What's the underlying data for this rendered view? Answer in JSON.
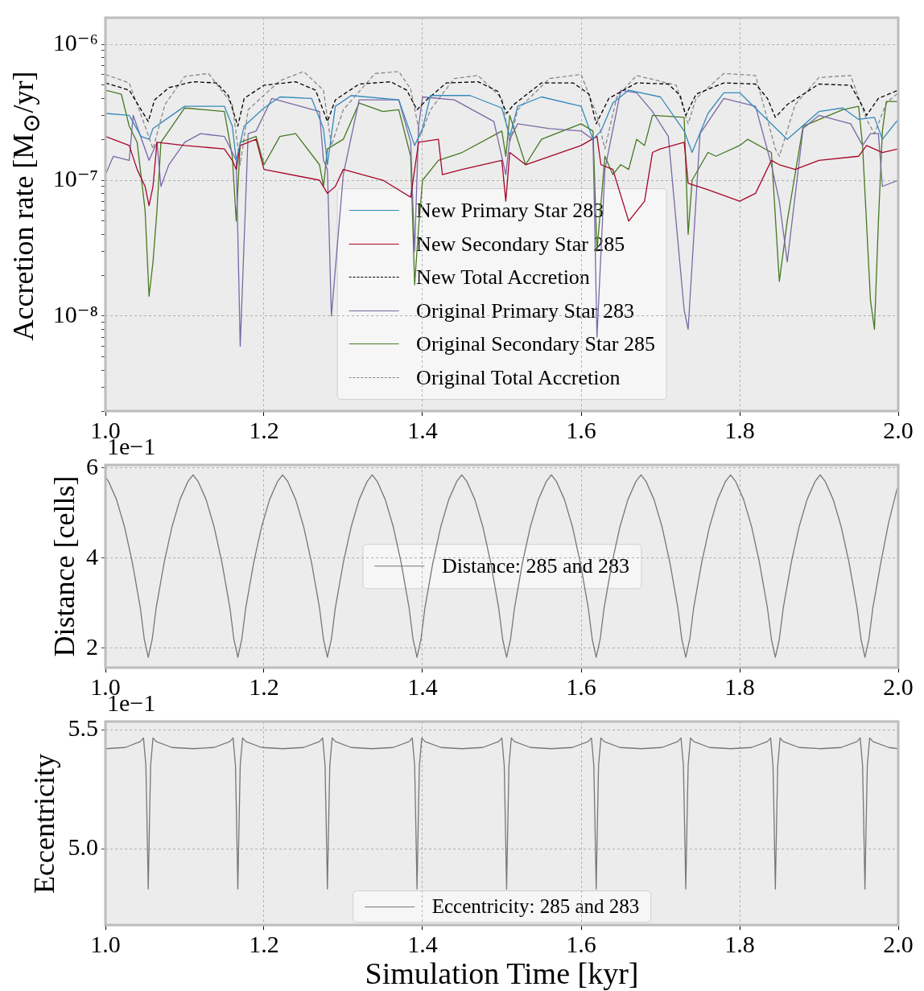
{
  "chart_data": [
    {
      "type": "line",
      "ylabel": "Accretion rate [M$_{⊙}$/yr]",
      "log": "y",
      "grid": true,
      "legend": "bottom",
      "xlim": [
        1.0,
        2.0
      ],
      "xticks": [
        {
          "value": 1.0,
          "label": "1.0"
        },
        {
          "value": 1.2,
          "label": "1.2"
        },
        {
          "value": 1.4,
          "label": "1.4"
        },
        {
          "value": 1.6,
          "label": "1.6"
        },
        {
          "value": 1.8,
          "label": "1.8"
        },
        {
          "value": 2.0,
          "label": "2.0"
        }
      ],
      "ylim": [
        2e-09,
        1.57e-06
      ],
      "yticks": [
        {
          "value": 2e-09,
          "label": null
        },
        {
          "value": 3e-09,
          "label": null
        },
        {
          "value": 4e-09,
          "label": null
        },
        {
          "value": 5e-09,
          "label": null
        },
        {
          "value": 6e-09,
          "label": null
        },
        {
          "value": 7e-09,
          "label": null
        },
        {
          "value": 8e-09,
          "label": null
        },
        {
          "value": 9e-09,
          "label": null
        },
        {
          "value": 1e-08,
          "label": "10⁻⁸"
        },
        {
          "value": 2e-08,
          "label": null
        },
        {
          "value": 3e-08,
          "label": null
        },
        {
          "value": 4e-08,
          "label": null
        },
        {
          "value": 5e-08,
          "label": null
        },
        {
          "value": 6e-08,
          "label": null
        },
        {
          "value": 7e-08,
          "label": null
        },
        {
          "value": 8e-08,
          "label": null
        },
        {
          "value": 9e-08,
          "label": null
        },
        {
          "value": 1e-07,
          "label": "10⁻⁷"
        },
        {
          "value": 2e-07,
          "label": null
        },
        {
          "value": 3e-07,
          "label": null
        },
        {
          "value": 4e-07,
          "label": null
        },
        {
          "value": 5e-07,
          "label": null
        },
        {
          "value": 6e-07,
          "label": null
        },
        {
          "value": 7e-07,
          "label": null
        },
        {
          "value": 8e-07,
          "label": null
        },
        {
          "value": 9e-07,
          "label": null
        },
        {
          "value": 1e-06,
          "label": "10⁻⁶"
        }
      ],
      "series": [
        {
          "name": "New Primary Star 283",
          "color": "#348abd",
          "line_style": "solid",
          "x": [
            1.0,
            1.03,
            1.045,
            1.055,
            1.06,
            1.08,
            1.1,
            1.15,
            1.16,
            1.165,
            1.175,
            1.2,
            1.22,
            1.26,
            1.275,
            1.28,
            1.29,
            1.31,
            1.37,
            1.39,
            1.4,
            1.41,
            1.46,
            1.5,
            1.51,
            1.52,
            1.55,
            1.6,
            1.615,
            1.625,
            1.64,
            1.66,
            1.7,
            1.73,
            1.74,
            1.76,
            1.78,
            1.8,
            1.84,
            1.86,
            1.9,
            1.93,
            1.95,
            1.97,
            1.98,
            2.0
          ],
          "values": [
            3.1e-07,
            3e-07,
            2.1e-07,
            2e-07,
            2.4e-07,
            2.9e-07,
            3.5e-07,
            3.5e-07,
            2.5e-07,
            1.4e-07,
            2.5e-07,
            3.4e-07,
            4.1e-07,
            4e-07,
            2.4e-07,
            1.3e-07,
            3.5e-07,
            4.2e-07,
            3.9e-07,
            1.8e-07,
            2.4e-07,
            4.2e-07,
            4.2e-07,
            3.4e-07,
            2.1e-07,
            3.5e-07,
            4.1e-07,
            3.5e-07,
            2e-07,
            2.3e-07,
            3.7e-07,
            4.6e-07,
            4.1e-07,
            2.3e-07,
            1.6e-07,
            3.1e-07,
            4.4e-07,
            4.4e-07,
            2.6e-07,
            2e-07,
            3.2e-07,
            3.4e-07,
            2.8e-07,
            2.9e-07,
            2e-07,
            2.8e-07
          ]
        },
        {
          "name": "New Secondary Star 285",
          "color": "#a60628",
          "line_style": "solid",
          "x": [
            1.0,
            1.03,
            1.04,
            1.05,
            1.055,
            1.06,
            1.065,
            1.1,
            1.15,
            1.16,
            1.165,
            1.17,
            1.19,
            1.2,
            1.27,
            1.28,
            1.29,
            1.3,
            1.35,
            1.385,
            1.395,
            1.42,
            1.425,
            1.45,
            1.5,
            1.505,
            1.51,
            1.53,
            1.6,
            1.62,
            1.625,
            1.64,
            1.66,
            1.68,
            1.69,
            1.7,
            1.73,
            1.735,
            1.76,
            1.8,
            1.82,
            1.84,
            1.85,
            1.87,
            1.9,
            1.95,
            1.96,
            1.98,
            2.0
          ],
          "values": [
            2.1e-07,
            1.8e-07,
            1.2e-07,
            9e-08,
            6.5e-08,
            9e-08,
            1.9e-07,
            1.8e-07,
            1.7e-07,
            1.4e-07,
            1.2e-07,
            1.8e-07,
            2e-07,
            1.2e-07,
            1e-07,
            8e-08,
            9e-08,
            1.2e-07,
            1e-07,
            7.5e-08,
            1.9e-07,
            2e-07,
            1.1e-07,
            1.2e-07,
            1.4e-07,
            7e-08,
            1.6e-07,
            1.3e-07,
            1.8e-07,
            2.1e-07,
            1.3e-07,
            1.2e-07,
            5e-08,
            7e-08,
            1.6e-07,
            1.7e-07,
            1.9e-07,
            9.5e-08,
            8.5e-08,
            7e-08,
            8e-08,
            1.4e-07,
            1.3e-07,
            1.2e-07,
            1.4e-07,
            1.5e-07,
            1.8e-07,
            1.6e-07,
            1.7e-07
          ]
        },
        {
          "name": "New Total Accretion",
          "color": "#000000",
          "line_style": "dashed",
          "x": [
            1.0,
            1.03,
            1.045,
            1.054,
            1.062,
            1.08,
            1.11,
            1.14,
            1.155,
            1.167,
            1.175,
            1.2,
            1.24,
            1.265,
            1.28,
            1.29,
            1.32,
            1.36,
            1.38,
            1.393,
            1.405,
            1.43,
            1.47,
            1.495,
            1.506,
            1.515,
            1.55,
            1.59,
            1.61,
            1.619,
            1.635,
            1.67,
            1.71,
            1.725,
            1.732,
            1.745,
            1.78,
            1.82,
            1.835,
            1.845,
            1.86,
            1.9,
            1.94,
            1.955,
            1.96,
            1.975,
            2.0
          ],
          "values": [
            5.2e-07,
            4.6e-07,
            3.3e-07,
            2.7e-07,
            3.9e-07,
            4.8e-07,
            5.3e-07,
            5.2e-07,
            4.2e-07,
            2.5e-07,
            4e-07,
            5e-07,
            5.3e-07,
            4.6e-07,
            2.7e-07,
            3.9e-07,
            5.1e-07,
            5.3e-07,
            4.6e-07,
            3.3e-07,
            3.9e-07,
            5.2e-07,
            5.3e-07,
            4.5e-07,
            3.1e-07,
            3.6e-07,
            5.2e-07,
            5.2e-07,
            4.3e-07,
            2.6e-07,
            4e-07,
            5.2e-07,
            5.1e-07,
            4.2e-07,
            3e-07,
            4.3e-07,
            5.2e-07,
            5.1e-07,
            4e-07,
            2.9e-07,
            3.6e-07,
            5.1e-07,
            5e-07,
            3.5e-07,
            3e-07,
            4e-07,
            4.6e-07
          ]
        },
        {
          "name": "Original Primary Star 283",
          "color": "#7a68a6",
          "line_style": "solid",
          "x": [
            1.0,
            1.01,
            1.03,
            1.035,
            1.055,
            1.065,
            1.07,
            1.08,
            1.1,
            1.12,
            1.15,
            1.165,
            1.17,
            1.18,
            1.19,
            1.21,
            1.27,
            1.275,
            1.28,
            1.285,
            1.3,
            1.32,
            1.37,
            1.385,
            1.39,
            1.395,
            1.4,
            1.44,
            1.49,
            1.505,
            1.51,
            1.52,
            1.56,
            1.6,
            1.615,
            1.62,
            1.63,
            1.65,
            1.67,
            1.69,
            1.71,
            1.73,
            1.735,
            1.75,
            1.78,
            1.82,
            1.84,
            1.85,
            1.86,
            1.88,
            1.9,
            1.94,
            1.955,
            1.965,
            1.975,
            1.98,
            2.0
          ],
          "values": [
            1.1e-07,
            1.5e-07,
            1.4e-07,
            3e-07,
            1.4e-07,
            1.9e-07,
            9e-08,
            1.3e-07,
            1.9e-07,
            2.2e-07,
            2.1e-07,
            1.4e-07,
            6e-09,
            2.2e-07,
            2.3e-07,
            4e-07,
            3.2e-07,
            1.4e-07,
            1.2e-07,
            1e-08,
            1.1e-07,
            3.9e-07,
            3.9e-07,
            1.9e-07,
            3e-08,
            2.5e-07,
            4.1e-07,
            3.9e-07,
            2.7e-07,
            1.1e-07,
            2e-07,
            2.6e-07,
            2.4e-07,
            2.3e-07,
            2e-07,
            7e-09,
            1.2e-07,
            4.6e-07,
            4.4e-07,
            3.2e-07,
            2.1e-07,
            1.1e-08,
            8e-09,
            2.2e-07,
            4e-07,
            3.5e-07,
            1.3e-07,
            7e-08,
            2.5e-08,
            2.4e-07,
            3e-07,
            2.6e-07,
            1.8e-07,
            2.2e-07,
            2.2e-07,
            9e-08,
            1e-07
          ]
        },
        {
          "name": "Original Secondary Star 285",
          "color": "#467821",
          "line_style": "solid",
          "x": [
            1.0,
            1.02,
            1.03,
            1.04,
            1.05,
            1.055,
            1.06,
            1.065,
            1.07,
            1.1,
            1.15,
            1.16,
            1.165,
            1.17,
            1.19,
            1.2,
            1.22,
            1.24,
            1.27,
            1.275,
            1.28,
            1.3,
            1.32,
            1.35,
            1.37,
            1.385,
            1.39,
            1.395,
            1.4,
            1.42,
            1.45,
            1.5,
            1.505,
            1.51,
            1.53,
            1.55,
            1.6,
            1.615,
            1.62,
            1.63,
            1.64,
            1.65,
            1.66,
            1.67,
            1.68,
            1.69,
            1.73,
            1.735,
            1.74,
            1.76,
            1.77,
            1.8,
            1.81,
            1.84,
            1.85,
            1.86,
            1.88,
            1.93,
            1.95,
            1.955,
            1.965,
            1.97,
            1.975,
            1.98,
            1.985,
            2.0
          ],
          "values": [
            4.6e-07,
            4.3e-07,
            2.5e-07,
            1.9e-07,
            6e-08,
            1.4e-08,
            2.5e-08,
            6e-08,
            1.9e-07,
            3.4e-07,
            3.2e-07,
            1.5e-07,
            5e-08,
            1.9e-07,
            2.1e-07,
            1.3e-07,
            2.1e-07,
            2.2e-07,
            1.3e-07,
            9e-08,
            1.7e-07,
            2e-07,
            3.7e-07,
            3.2e-07,
            3.3e-07,
            1.5e-07,
            1.7e-08,
            4.5e-08,
            1e-07,
            1.4e-07,
            1.6e-07,
            2.3e-07,
            1.5e-07,
            3e-07,
            1.3e-07,
            2e-07,
            2.6e-07,
            2.3e-07,
            3e-08,
            1.5e-07,
            1.1e-07,
            1.3e-07,
            1.2e-07,
            2e-07,
            1.8e-07,
            3e-07,
            2.9e-07,
            4e-08,
            1e-07,
            1.6e-07,
            1.5e-07,
            1.8e-07,
            2e-07,
            1.6e-07,
            1.8e-08,
            5e-08,
            2.5e-07,
            3.3e-07,
            3.5e-07,
            1.8e-07,
            1.3e-08,
            8e-09,
            5e-08,
            2.3e-07,
            3.8e-07,
            3.8e-07
          ]
        },
        {
          "name": "Original Total Accretion",
          "color": "#888888",
          "line_style": "dashed",
          "x": [
            1.0,
            1.03,
            1.05,
            1.06,
            1.075,
            1.1,
            1.13,
            1.16,
            1.17,
            1.18,
            1.22,
            1.25,
            1.275,
            1.285,
            1.3,
            1.34,
            1.37,
            1.385,
            1.397,
            1.41,
            1.44,
            1.47,
            1.5,
            1.51,
            1.52,
            1.56,
            1.6,
            1.62,
            1.63,
            1.645,
            1.67,
            1.72,
            1.735,
            1.745,
            1.78,
            1.82,
            1.845,
            1.85,
            1.87,
            1.9,
            1.94,
            1.96,
            1.97,
            1.985,
            2.0
          ],
          "values": [
            6e-07,
            5.2e-07,
            2.5e-07,
            1.7e-07,
            3.6e-07,
            5.8e-07,
            6.1e-07,
            3.6e-07,
            1.3e-07,
            3.3e-07,
            5.4e-07,
            6.3e-07,
            4.6e-07,
            1.8e-07,
            3.3e-07,
            6.1e-07,
            6.3e-07,
            4.7e-07,
            2.1e-07,
            3.3e-07,
            5.6e-07,
            5.9e-07,
            4e-07,
            1.9e-07,
            3.3e-07,
            5.6e-07,
            6e-07,
            3e-07,
            1.7e-07,
            4.1e-07,
            5.9e-07,
            5e-07,
            2.6e-07,
            4e-07,
            6.1e-07,
            5.9e-07,
            1.7e-07,
            1.5e-07,
            3.6e-07,
            5.7e-07,
            5.9e-07,
            2.8e-07,
            2.2e-07,
            3.7e-07,
            4.4e-07
          ]
        }
      ]
    },
    {
      "type": "line",
      "ylabel": "Distance [cells]",
      "annotations": [
        "1e−1"
      ],
      "grid": true,
      "legend": "center",
      "xlim": [
        1.0,
        2.0
      ],
      "xticks": [
        {
          "value": 1.0,
          "label": "1.0"
        },
        {
          "value": 1.2,
          "label": "1.2"
        },
        {
          "value": 1.4,
          "label": "1.4"
        },
        {
          "value": 1.6,
          "label": "1.6"
        },
        {
          "value": 1.8,
          "label": "1.8"
        },
        {
          "value": 2.0,
          "label": "2.0"
        }
      ],
      "ylim": [
        1.57,
        6.07
      ],
      "yticks": [
        2,
        4,
        6
      ],
      "series": [
        {
          "name": "Distance: 285 and 283",
          "color": "#777777",
          "line_style": "solid",
          "x": [
            1.0,
            1.004,
            1.014,
            1.024,
            1.034,
            1.044,
            1.049,
            1.054,
            1.059,
            1.064,
            1.074,
            1.084,
            1.094,
            1.104,
            1.1105,
            1.117,
            1.127,
            1.137,
            1.147,
            1.157,
            1.162,
            1.167,
            1.172,
            1.177,
            1.187,
            1.197,
            1.207,
            1.217,
            1.2235,
            1.23,
            1.24,
            1.25,
            1.26,
            1.27,
            1.275,
            1.28,
            1.285,
            1.29,
            1.3,
            1.31,
            1.32,
            1.33,
            1.3365,
            1.343,
            1.353,
            1.363,
            1.373,
            1.383,
            1.388,
            1.393,
            1.398,
            1.403,
            1.413,
            1.423,
            1.433,
            1.443,
            1.4495,
            1.456,
            1.466,
            1.476,
            1.486,
            1.496,
            1.501,
            1.506,
            1.511,
            1.516,
            1.526,
            1.536,
            1.546,
            1.556,
            1.5625,
            1.569,
            1.579,
            1.589,
            1.599,
            1.609,
            1.614,
            1.619,
            1.624,
            1.629,
            1.639,
            1.649,
            1.659,
            1.669,
            1.6755,
            1.682,
            1.692,
            1.702,
            1.712,
            1.722,
            1.727,
            1.732,
            1.737,
            1.742,
            1.752,
            1.762,
            1.772,
            1.782,
            1.7885,
            1.795,
            1.805,
            1.815,
            1.825,
            1.835,
            1.84,
            1.845,
            1.85,
            1.855,
            1.865,
            1.875,
            1.885,
            1.895,
            1.9015,
            1.908,
            1.918,
            1.928,
            1.938,
            1.948,
            1.953,
            1.958,
            1.963,
            1.968,
            1.978,
            1.988,
            1.998,
            2.0
          ],
          "values": [
            5.8,
            5.7,
            5.3,
            4.7,
            3.9,
            2.9,
            2.2,
            1.8,
            2.2,
            2.9,
            3.9,
            4.7,
            5.3,
            5.7,
            5.85,
            5.7,
            5.3,
            4.7,
            3.9,
            2.9,
            2.2,
            1.8,
            2.2,
            2.9,
            3.9,
            4.7,
            5.3,
            5.7,
            5.85,
            5.7,
            5.3,
            4.7,
            3.9,
            2.9,
            2.2,
            1.8,
            2.2,
            2.9,
            3.9,
            4.7,
            5.3,
            5.7,
            5.85,
            5.7,
            5.3,
            4.7,
            3.9,
            2.9,
            2.2,
            1.8,
            2.2,
            2.9,
            3.9,
            4.7,
            5.3,
            5.7,
            5.85,
            5.7,
            5.3,
            4.7,
            3.9,
            2.9,
            2.2,
            1.8,
            2.2,
            2.9,
            3.9,
            4.7,
            5.3,
            5.7,
            5.85,
            5.7,
            5.3,
            4.7,
            3.9,
            2.9,
            2.2,
            1.8,
            2.2,
            2.9,
            3.9,
            4.7,
            5.3,
            5.7,
            5.85,
            5.7,
            5.3,
            4.7,
            3.9,
            2.9,
            2.2,
            1.8,
            2.2,
            2.9,
            3.9,
            4.7,
            5.3,
            5.7,
            5.85,
            5.7,
            5.3,
            4.7,
            3.9,
            2.9,
            2.2,
            1.8,
            2.2,
            2.9,
            3.9,
            4.7,
            5.3,
            5.7,
            5.85,
            5.7,
            5.3,
            4.7,
            3.9,
            2.9,
            2.2,
            1.8,
            2.2,
            2.9,
            3.9,
            4.8,
            5.5,
            5.6
          ]
        }
      ]
    },
    {
      "type": "line",
      "xlabel": "Simulation Time [kyr]",
      "ylabel": "Eccentricity",
      "annotations": [
        "1e−1"
      ],
      "grid": true,
      "legend": "bottom",
      "xlim": [
        1.0,
        2.0
      ],
      "xticks": [
        {
          "value": 1.0,
          "label": "1.0"
        },
        {
          "value": 1.2,
          "label": "1.2"
        },
        {
          "value": 1.4,
          "label": "1.4"
        },
        {
          "value": 1.6,
          "label": "1.6"
        },
        {
          "value": 1.8,
          "label": "1.8"
        },
        {
          "value": 2.0,
          "label": "2.0"
        }
      ],
      "ylim": [
        4.679,
        5.534
      ],
      "yticks": [
        {
          "value": 5.0,
          "label": "5.0"
        },
        {
          "value": 5.5,
          "label": "5.5"
        }
      ],
      "series": [
        {
          "name": "Eccentricity: 285 and 283",
          "color": "#777777",
          "line_style": "solid",
          "x": [
            1.0,
            1.025,
            1.044,
            1.048,
            1.051,
            1.0525,
            1.054,
            1.0555,
            1.057,
            1.06,
            1.064,
            1.084,
            1.1105,
            1.137,
            1.157,
            1.161,
            1.164,
            1.1655,
            1.167,
            1.1685,
            1.17,
            1.173,
            1.177,
            1.197,
            1.2235,
            1.25,
            1.27,
            1.274,
            1.277,
            1.2785,
            1.28,
            1.2815,
            1.283,
            1.286,
            1.29,
            1.31,
            1.3365,
            1.363,
            1.383,
            1.387,
            1.39,
            1.3915,
            1.393,
            1.3945,
            1.396,
            1.399,
            1.403,
            1.423,
            1.4495,
            1.476,
            1.496,
            1.5,
            1.503,
            1.5045,
            1.506,
            1.5075,
            1.509,
            1.512,
            1.516,
            1.536,
            1.5625,
            1.589,
            1.609,
            1.613,
            1.616,
            1.6175,
            1.619,
            1.6205,
            1.622,
            1.625,
            1.629,
            1.649,
            1.6755,
            1.702,
            1.722,
            1.726,
            1.729,
            1.7305,
            1.732,
            1.7335,
            1.735,
            1.738,
            1.742,
            1.762,
            1.7885,
            1.815,
            1.835,
            1.839,
            1.842,
            1.8435,
            1.845,
            1.8465,
            1.848,
            1.851,
            1.855,
            1.875,
            1.9015,
            1.928,
            1.948,
            1.952,
            1.955,
            1.9565,
            1.958,
            1.9595,
            1.961,
            1.964,
            1.968,
            1.988,
            2.0
          ],
          "values": [
            5.42,
            5.425,
            5.45,
            5.465,
            5.35,
            5.1,
            4.83,
            5.1,
            5.35,
            5.465,
            5.45,
            5.425,
            5.42,
            5.425,
            5.45,
            5.465,
            5.35,
            5.1,
            4.83,
            5.1,
            5.35,
            5.465,
            5.45,
            5.425,
            5.42,
            5.425,
            5.45,
            5.465,
            5.35,
            5.1,
            4.83,
            5.1,
            5.35,
            5.465,
            5.45,
            5.425,
            5.42,
            5.425,
            5.45,
            5.465,
            5.35,
            5.1,
            4.83,
            5.1,
            5.35,
            5.465,
            5.45,
            5.425,
            5.42,
            5.425,
            5.45,
            5.465,
            5.35,
            5.1,
            4.83,
            5.1,
            5.35,
            5.465,
            5.45,
            5.425,
            5.42,
            5.425,
            5.45,
            5.465,
            5.35,
            5.1,
            4.83,
            5.1,
            5.35,
            5.465,
            5.45,
            5.425,
            5.42,
            5.425,
            5.45,
            5.465,
            5.35,
            5.1,
            4.83,
            5.1,
            5.35,
            5.465,
            5.45,
            5.425,
            5.42,
            5.425,
            5.45,
            5.465,
            5.35,
            5.1,
            4.83,
            5.1,
            5.35,
            5.465,
            5.45,
            5.425,
            5.42,
            5.425,
            5.45,
            5.465,
            5.35,
            5.1,
            4.83,
            5.1,
            5.35,
            5.465,
            5.45,
            5.425,
            5.42
          ]
        }
      ]
    }
  ]
}
